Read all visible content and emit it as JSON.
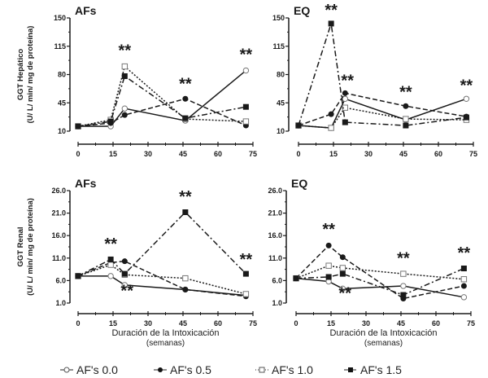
{
  "chart_data": [
    {
      "type": "line",
      "panel_label": "AFs",
      "ylabel": [
        "GGT Hepático",
        "(U/ L/ min/ mg de proteína)"
      ],
      "xlabel": [],
      "x": [
        0,
        14,
        20,
        46,
        72
      ],
      "xlim": [
        0,
        75
      ],
      "xticks": [
        0,
        15,
        30,
        45,
        60,
        75
      ],
      "ylim": [
        10,
        150
      ],
      "yticks": [
        "10",
        "45",
        "80",
        "115",
        "150"
      ],
      "series": [
        {
          "name": "AF's 0.0",
          "values": [
            16,
            16,
            38,
            23,
            85
          ]
        },
        {
          "name": "AF's 0.5",
          "values": [
            16,
            20,
            30,
            50,
            17
          ]
        },
        {
          "name": "AF's 1.0",
          "values": [
            16,
            24,
            90,
            25,
            22
          ]
        },
        {
          "name": "AF's 1.5",
          "values": [
            16,
            22,
            78,
            26,
            40
          ]
        }
      ],
      "annotations": [
        {
          "text": "**",
          "x": 20,
          "y": 103
        },
        {
          "text": "**",
          "x": 46,
          "y": 62
        },
        {
          "text": "**",
          "x": 72,
          "y": 98
        }
      ]
    },
    {
      "type": "line",
      "panel_label": "EQ",
      "ylabel": [],
      "xlabel": [],
      "x": [
        0,
        14,
        20,
        46,
        72
      ],
      "xlim": [
        0,
        75
      ],
      "xticks": [
        0,
        15,
        30,
        45,
        60,
        75
      ],
      "ylim": [
        10,
        150
      ],
      "yticks": [
        "10",
        "45",
        "80",
        "115",
        "150"
      ],
      "series": [
        {
          "name": "AF's 0.0",
          "values": [
            17,
            14,
            50,
            24,
            50
          ]
        },
        {
          "name": "AF's 0.5",
          "values": [
            17,
            31,
            57,
            41,
            28
          ]
        },
        {
          "name": "AF's 1.0",
          "values": [
            17,
            14,
            39,
            25,
            24
          ]
        },
        {
          "name": "AF's 1.5",
          "values": [
            17,
            143,
            21,
            17,
            27
          ]
        }
      ],
      "annotations": [
        {
          "text": "**",
          "x": 14,
          "y": 153
        },
        {
          "text": "**",
          "x": 21,
          "y": 66
        },
        {
          "text": "**",
          "x": 46,
          "y": 52
        },
        {
          "text": "**",
          "x": 72,
          "y": 60
        }
      ]
    },
    {
      "type": "line",
      "panel_label": "AFs",
      "ylabel": [
        "GGT Renal",
        "(U/ L/ min/ mg de proteína)"
      ],
      "xlabel": [
        "Duración de la Intoxicación",
        "(semanas)"
      ],
      "x": [
        0,
        14,
        20,
        46,
        72
      ],
      "xlim": [
        0,
        75
      ],
      "xticks": [
        0,
        15,
        30,
        45,
        60,
        75
      ],
      "ylim": [
        1,
        26
      ],
      "yticks": [
        "1.0",
        "6.0",
        "11.0",
        "16.0",
        "21.0",
        "26.0"
      ],
      "series": [
        {
          "name": "AF's 0.0",
          "values": [
            7,
            7,
            5,
            4,
            2.7
          ]
        },
        {
          "name": "AF's 0.5",
          "values": [
            7,
            10,
            10.3,
            4,
            2.5
          ]
        },
        {
          "name": "AF's 1.0",
          "values": [
            7,
            9.5,
            7.3,
            6.5,
            3
          ]
        },
        {
          "name": "AF's 1.5",
          "values": [
            7,
            10.7,
            7.5,
            21.2,
            7.5
          ]
        }
      ],
      "annotations": [
        {
          "text": "**",
          "x": 14,
          "y": 13
        },
        {
          "text": "**",
          "x": 21,
          "y": 2.5
        },
        {
          "text": "**",
          "x": 46,
          "y": 23.5
        },
        {
          "text": "**",
          "x": 72,
          "y": 9.5
        }
      ]
    },
    {
      "type": "line",
      "panel_label": "EQ",
      "ylabel": [],
      "xlabel": [
        "Duración de la Intoxicación",
        "(semanas)"
      ],
      "x": [
        0,
        14,
        20,
        46,
        72
      ],
      "xlim": [
        0,
        75
      ],
      "xticks": [
        0,
        15,
        30,
        45,
        60,
        75
      ],
      "ylim": [
        1,
        26
      ],
      "yticks": [
        "1.0",
        "6.0",
        "11.0",
        "16.0",
        "21.0",
        "26.0"
      ],
      "series": [
        {
          "name": "AF's 0.0",
          "values": [
            6.5,
            5.8,
            4.2,
            4.8,
            2.3
          ]
        },
        {
          "name": "AF's 0.5",
          "values": [
            6.5,
            13.8,
            11.2,
            2,
            4.8
          ]
        },
        {
          "name": "AF's 1.0",
          "values": [
            6.5,
            9.3,
            8.8,
            7.5,
            6.3
          ]
        },
        {
          "name": "AF's 1.5",
          "values": [
            6.5,
            6.8,
            7.5,
            2.8,
            8.7
          ]
        }
      ],
      "annotations": [
        {
          "text": "**",
          "x": 14,
          "y": 16.2
        },
        {
          "text": "**",
          "x": 21,
          "y": 2
        },
        {
          "text": "**",
          "x": 46,
          "y": 9.8
        },
        {
          "text": "**",
          "x": 72,
          "y": 11
        }
      ]
    }
  ],
  "legend": [
    {
      "label": "AF's 0.0",
      "marker": "open-circle",
      "dash": "solid"
    },
    {
      "label": "AF's 0.5",
      "marker": "filled-circle",
      "dash": "dashed"
    },
    {
      "label": "AF's 1.0",
      "marker": "open-square",
      "dash": "dotted"
    },
    {
      "label": "AF's 1.5",
      "marker": "filled-square",
      "dash": "dash-dot"
    }
  ],
  "colors": {
    "ink": "#1a1a1a",
    "open_marker_stroke": "#777777"
  }
}
